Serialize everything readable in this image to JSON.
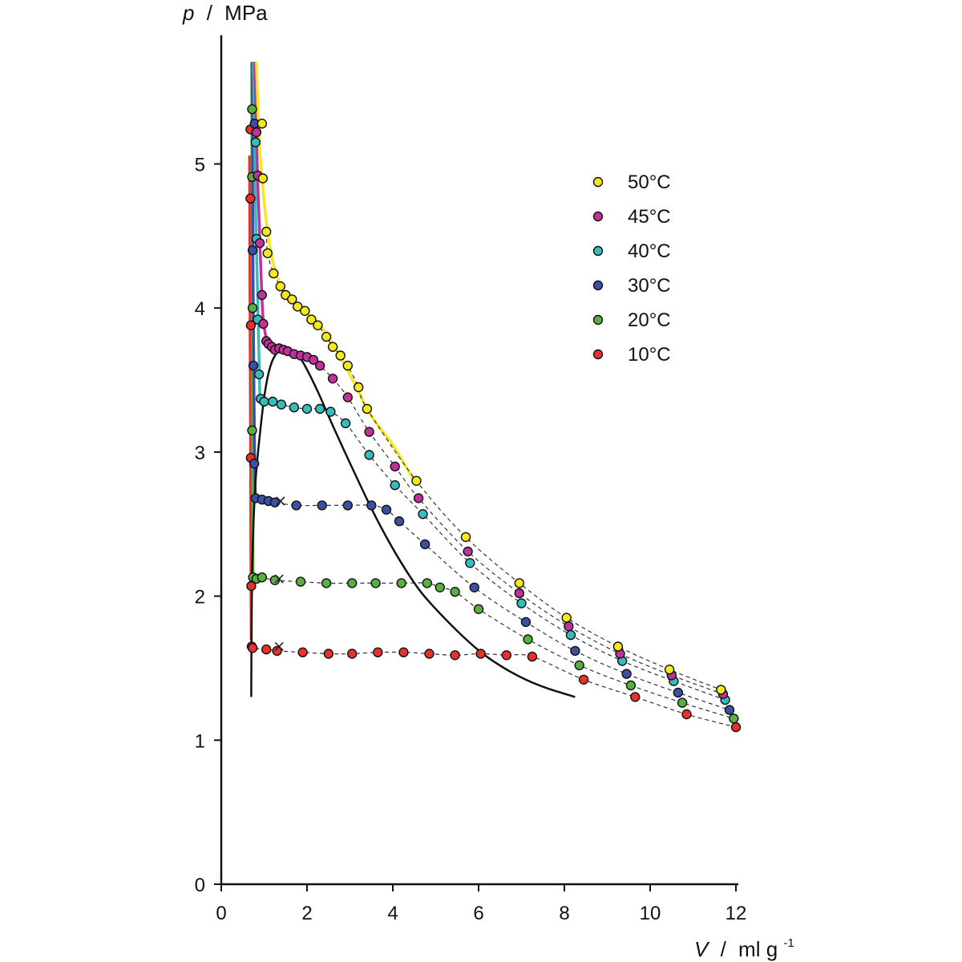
{
  "chart_data": {
    "type": "scatter",
    "title": "",
    "xlabel": {
      "symbol": "V",
      "unit": "ml g",
      "exponent": "-1",
      "separator": "/"
    },
    "ylabel": {
      "symbol": "p",
      "unit": "MPa",
      "separator": "/"
    },
    "xlim": [
      0,
      12
    ],
    "ylim": [
      0,
      5.8
    ],
    "xticks": [
      "0",
      "2",
      "4",
      "6",
      "8",
      "10",
      "12"
    ],
    "yticks": [
      "0",
      "1",
      "2",
      "3",
      "4",
      "5"
    ],
    "grid": false,
    "legend_position": "top-right",
    "series": [
      {
        "name": "50°C",
        "color": "#f5e81d",
        "points": [
          [
            0.95,
            5.28
          ],
          [
            0.97,
            4.9
          ],
          [
            1.05,
            4.53
          ],
          [
            1.08,
            4.38
          ],
          [
            1.22,
            4.24
          ],
          [
            1.38,
            4.15
          ],
          [
            1.5,
            4.09
          ],
          [
            1.65,
            4.06
          ],
          [
            1.78,
            4.01
          ],
          [
            1.95,
            3.98
          ],
          [
            2.1,
            3.92
          ],
          [
            2.25,
            3.88
          ],
          [
            2.45,
            3.8
          ],
          [
            2.6,
            3.73
          ],
          [
            2.78,
            3.67
          ],
          [
            2.95,
            3.6
          ],
          [
            3.2,
            3.45
          ],
          [
            3.4,
            3.3
          ],
          [
            4.55,
            2.8
          ],
          [
            5.7,
            2.41
          ],
          [
            6.95,
            2.09
          ],
          [
            8.05,
            1.85
          ],
          [
            9.25,
            1.65
          ],
          [
            10.45,
            1.49
          ],
          [
            11.65,
            1.35
          ]
        ],
        "curve": [
          [
            0.82,
            5.7
          ],
          [
            0.88,
            5.2
          ],
          [
            0.95,
            4.9
          ],
          [
            1.05,
            4.6
          ],
          [
            1.15,
            4.4
          ],
          [
            1.3,
            4.22
          ],
          [
            1.5,
            4.1
          ],
          [
            1.9,
            3.99
          ],
          [
            2.3,
            3.88
          ],
          [
            2.7,
            3.7
          ],
          [
            3.1,
            3.48
          ],
          [
            3.5,
            3.25
          ],
          [
            4.0,
            3.05
          ],
          [
            4.5,
            2.8
          ]
        ]
      },
      {
        "name": "45°C",
        "color": "#c0329b",
        "points": [
          [
            0.82,
            5.22
          ],
          [
            0.85,
            4.92
          ],
          [
            0.9,
            4.45
          ],
          [
            0.95,
            4.09
          ],
          [
            0.98,
            3.89
          ],
          [
            1.05,
            3.77
          ],
          [
            1.1,
            3.75
          ],
          [
            1.18,
            3.73
          ],
          [
            1.25,
            3.71
          ],
          [
            1.35,
            3.72
          ],
          [
            1.45,
            3.71
          ],
          [
            1.55,
            3.7
          ],
          [
            1.7,
            3.68
          ],
          [
            1.85,
            3.67
          ],
          [
            2.0,
            3.66
          ],
          [
            2.15,
            3.64
          ],
          [
            2.3,
            3.6
          ],
          [
            2.6,
            3.51
          ],
          [
            2.95,
            3.38
          ],
          [
            3.45,
            3.14
          ],
          [
            4.05,
            2.9
          ],
          [
            4.6,
            2.68
          ],
          [
            5.75,
            2.31
          ],
          [
            6.95,
            2.02
          ],
          [
            8.1,
            1.79
          ],
          [
            9.3,
            1.6
          ],
          [
            10.5,
            1.45
          ],
          [
            11.7,
            1.32
          ]
        ],
        "curve": [
          [
            0.78,
            5.7
          ],
          [
            0.82,
            5.2
          ],
          [
            0.86,
            4.8
          ],
          [
            0.92,
            4.3
          ],
          [
            0.97,
            3.95
          ],
          [
            1.05,
            3.78
          ]
        ]
      },
      {
        "name": "40°C",
        "color": "#37bcbe",
        "points": [
          [
            0.8,
            5.15
          ],
          [
            0.82,
            4.48
          ],
          [
            0.85,
            3.92
          ],
          [
            0.88,
            3.54
          ],
          [
            0.92,
            3.37
          ],
          [
            1.0,
            3.35
          ],
          [
            1.2,
            3.35
          ],
          [
            1.4,
            3.33
          ],
          [
            1.7,
            3.31
          ],
          [
            2.0,
            3.3
          ],
          [
            2.3,
            3.3
          ],
          [
            2.55,
            3.28
          ],
          [
            2.9,
            3.2
          ],
          [
            3.45,
            2.98
          ],
          [
            4.05,
            2.77
          ],
          [
            4.7,
            2.57
          ],
          [
            5.8,
            2.23
          ],
          [
            7.0,
            1.95
          ],
          [
            8.15,
            1.73
          ],
          [
            9.35,
            1.55
          ],
          [
            10.55,
            1.41
          ],
          [
            11.75,
            1.28
          ]
        ],
        "curve": [
          [
            0.75,
            5.7
          ],
          [
            0.78,
            5.2
          ],
          [
            0.8,
            4.7
          ],
          [
            0.84,
            4.2
          ],
          [
            0.87,
            3.8
          ],
          [
            0.9,
            3.4
          ]
        ]
      },
      {
        "name": "30°C",
        "color": "#3b4fa3",
        "points": [
          [
            0.78,
            5.28
          ],
          [
            0.73,
            4.4
          ],
          [
            0.75,
            3.6
          ],
          [
            0.77,
            2.92
          ],
          [
            0.8,
            2.68
          ],
          [
            0.95,
            2.67
          ],
          [
            1.1,
            2.66
          ],
          [
            1.25,
            2.65
          ],
          [
            1.75,
            2.63
          ],
          [
            2.35,
            2.63
          ],
          [
            2.95,
            2.63
          ],
          [
            3.5,
            2.63
          ],
          [
            3.85,
            2.6
          ],
          [
            4.15,
            2.52
          ],
          [
            4.75,
            2.36
          ],
          [
            5.9,
            2.06
          ],
          [
            7.1,
            1.82
          ],
          [
            8.25,
            1.62
          ],
          [
            9.45,
            1.46
          ],
          [
            10.65,
            1.33
          ],
          [
            11.85,
            1.21
          ]
        ],
        "curve": [
          [
            0.72,
            5.7
          ],
          [
            0.73,
            5.0
          ],
          [
            0.74,
            4.3
          ],
          [
            0.76,
            3.5
          ],
          [
            0.78,
            2.9
          ],
          [
            0.8,
            2.68
          ]
        ],
        "cross": [
          1.38,
          2.66
        ]
      },
      {
        "name": "20°C",
        "color": "#58b043",
        "points": [
          [
            0.72,
            5.38
          ],
          [
            0.72,
            4.91
          ],
          [
            0.73,
            4.0
          ],
          [
            0.72,
            3.15
          ],
          [
            0.74,
            2.13
          ],
          [
            0.82,
            2.12
          ],
          [
            0.95,
            2.13
          ],
          [
            1.25,
            2.11
          ],
          [
            1.85,
            2.1
          ],
          [
            2.45,
            2.09
          ],
          [
            3.05,
            2.09
          ],
          [
            3.6,
            2.09
          ],
          [
            4.2,
            2.09
          ],
          [
            4.8,
            2.09
          ],
          [
            5.1,
            2.06
          ],
          [
            5.45,
            2.03
          ],
          [
            6.0,
            1.91
          ],
          [
            7.15,
            1.7
          ],
          [
            8.35,
            1.52
          ],
          [
            9.55,
            1.38
          ],
          [
            10.75,
            1.26
          ],
          [
            11.95,
            1.15
          ]
        ],
        "curve": [
          [
            0.71,
            5.7
          ],
          [
            0.72,
            4.5
          ],
          [
            0.73,
            3.3
          ],
          [
            0.74,
            2.13
          ]
        ],
        "cross": [
          1.35,
          2.12
        ]
      },
      {
        "name": "10°C",
        "color": "#e8312d",
        "points": [
          [
            0.68,
            5.24
          ],
          [
            0.68,
            4.76
          ],
          [
            0.69,
            3.88
          ],
          [
            0.69,
            2.96
          ],
          [
            0.7,
            2.07
          ],
          [
            0.71,
            1.65
          ],
          [
            0.73,
            1.64
          ],
          [
            1.05,
            1.63
          ],
          [
            1.3,
            1.62
          ],
          [
            1.9,
            1.61
          ],
          [
            2.5,
            1.6
          ],
          [
            3.05,
            1.6
          ],
          [
            3.65,
            1.61
          ],
          [
            4.25,
            1.61
          ],
          [
            4.85,
            1.6
          ],
          [
            5.45,
            1.59
          ],
          [
            6.05,
            1.6
          ],
          [
            6.65,
            1.59
          ],
          [
            7.25,
            1.58
          ],
          [
            8.45,
            1.42
          ],
          [
            9.65,
            1.3
          ],
          [
            10.85,
            1.18
          ],
          [
            12.0,
            1.09
          ]
        ],
        "curve": [
          [
            0.66,
            5.05
          ],
          [
            0.67,
            4.2
          ],
          [
            0.68,
            3.3
          ],
          [
            0.69,
            2.4
          ],
          [
            0.7,
            1.7
          ]
        ],
        "cross": [
          1.35,
          1.65
        ]
      }
    ],
    "phase_boundary": [
      [
        0.7,
        1.3
      ],
      [
        0.71,
        1.9
      ],
      [
        0.74,
        2.4
      ],
      [
        0.8,
        2.8
      ],
      [
        0.9,
        3.12
      ],
      [
        1.02,
        3.42
      ],
      [
        1.15,
        3.6
      ],
      [
        1.3,
        3.69
      ],
      [
        1.45,
        3.71
      ],
      [
        1.6,
        3.71
      ],
      [
        1.75,
        3.69
      ],
      [
        1.95,
        3.6
      ],
      [
        2.25,
        3.42
      ],
      [
        2.65,
        3.15
      ],
      [
        3.1,
        2.86
      ],
      [
        3.6,
        2.55
      ],
      [
        4.1,
        2.28
      ],
      [
        4.6,
        2.05
      ],
      [
        5.1,
        1.88
      ],
      [
        5.6,
        1.73
      ],
      [
        6.1,
        1.6
      ],
      [
        6.6,
        1.5
      ],
      [
        7.1,
        1.42
      ],
      [
        7.6,
        1.36
      ],
      [
        8.25,
        1.3
      ]
    ]
  }
}
